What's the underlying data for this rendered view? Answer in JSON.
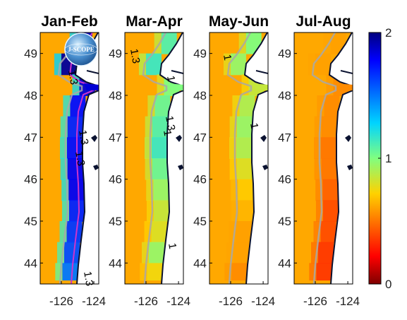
{
  "chart_data": {
    "type": "heatmap",
    "panels": [
      {
        "title": "Jan-Feb",
        "contour_labels": [
          "1.3",
          "1.3",
          "1.3",
          "1.3"
        ],
        "profile": {
          "lat": [
            49.5,
            49,
            48.5,
            48,
            47.5,
            47,
            46.5,
            46,
            45.5,
            45,
            44.5,
            44,
            43.6
          ],
          "value": [
            1.9,
            1.95,
            1.85,
            1.75,
            1.7,
            1.75,
            1.8,
            1.8,
            1.7,
            1.65,
            1.6,
            1.5,
            1.4
          ]
        }
      },
      {
        "title": "Mar-Apr",
        "contour_labels": [
          "1.3",
          "1",
          "1.3",
          "1",
          "1"
        ],
        "profile": {
          "lat": [
            49.5,
            49,
            48.5,
            48,
            47.5,
            47,
            46.5,
            46,
            45.5,
            45,
            44.5,
            44,
            43.6
          ],
          "value": [
            1.1,
            1.15,
            1.0,
            1.05,
            1.1,
            1.15,
            1.05,
            0.95,
            0.85,
            0.8,
            0.95,
            0.75,
            0.7
          ]
        }
      },
      {
        "title": "May-Jun",
        "contour_labels": [
          "1",
          "1"
        ],
        "profile": {
          "lat": [
            49.5,
            49,
            48.5,
            48,
            47.5,
            47,
            46.5,
            46,
            45.5,
            45,
            44.5,
            44,
            43.6
          ],
          "value": [
            1.0,
            0.95,
            0.85,
            0.9,
            0.95,
            0.9,
            0.8,
            0.7,
            0.65,
            0.6,
            0.6,
            0.55,
            0.5
          ]
        }
      },
      {
        "title": "Jul-Aug",
        "contour_labels": [],
        "profile": {
          "lat": [
            49.5,
            49,
            48.5,
            48,
            47.5,
            47,
            46.5,
            46,
            45.5,
            45,
            44.5,
            44,
            43.6
          ],
          "value": [
            0.6,
            0.6,
            0.55,
            0.55,
            0.55,
            0.5,
            0.5,
            0.45,
            0.4,
            0.4,
            0.35,
            0.35,
            0.3
          ]
        }
      }
    ],
    "offshore_value": 0.62,
    "xlabel": "",
    "ylabel": "",
    "xticks": [
      "-126",
      "-124"
    ],
    "xtick_values": [
      -126,
      -124
    ],
    "yticks": [
      "49",
      "48",
      "47",
      "46",
      "45",
      "44"
    ],
    "ytick_values": [
      49,
      48,
      47,
      46,
      45,
      44
    ],
    "xlim": [
      -127.3,
      -123.7
    ],
    "ylim": [
      43.5,
      49.5
    ],
    "colorbar": {
      "colormap": "jet",
      "range": [
        0,
        2
      ],
      "tick_labels": [
        "0",
        "1",
        "2"
      ],
      "tick_values": [
        0,
        1,
        2
      ]
    },
    "logo": {
      "text": "J-SCOPE"
    },
    "grid": false,
    "legend": "none"
  },
  "colors": {
    "land": "#0a1230",
    "contour_gray": "#a8a8a8",
    "contour_magenta": "#cc33cc",
    "frame": "#000000"
  }
}
